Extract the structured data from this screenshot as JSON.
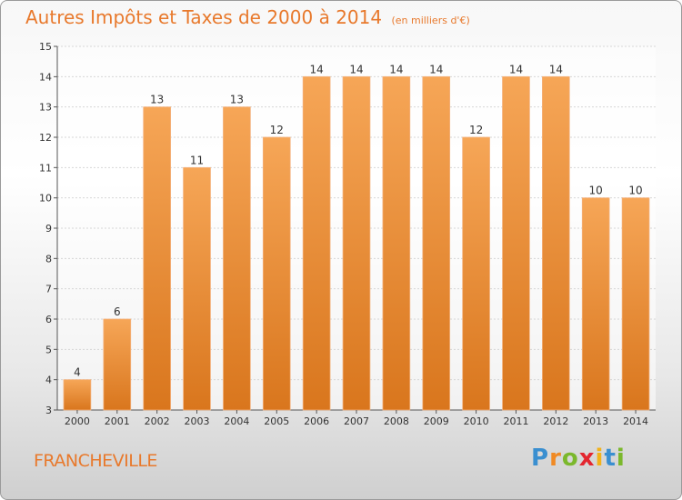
{
  "title": {
    "main": "Autres Impôts et Taxes de 2000 à 2014",
    "unit": "(en milliers d'€)"
  },
  "place": "FRANCHEVILLE",
  "logo": {
    "text": "Proxiti",
    "letters": [
      {
        "ch": "P",
        "color": "#3a8fd0"
      },
      {
        "ch": "r",
        "color": "#f08a24"
      },
      {
        "ch": "o",
        "color": "#7bb82c"
      },
      {
        "ch": "x",
        "color": "#e3262f"
      },
      {
        "ch": "i",
        "color": "#f2b21a"
      },
      {
        "ch": "t",
        "color": "#3a8fd0"
      },
      {
        "ch": "i",
        "color": "#7bb82c"
      }
    ]
  },
  "colors": {
    "accent": "#e8792c",
    "bar_top": "#f6a657",
    "bar_bottom": "#d9761d",
    "grid": "#d6d6d6"
  },
  "chart_data": {
    "type": "bar",
    "title": "Autres Impôts et Taxes de 2000 à 2014",
    "subtitle": "(en milliers d'€)",
    "categories": [
      "2000",
      "2001",
      "2002",
      "2003",
      "2004",
      "2005",
      "2006",
      "2007",
      "2008",
      "2009",
      "2010",
      "2011",
      "2012",
      "2013",
      "2014"
    ],
    "values": [
      4,
      6,
      13,
      11,
      13,
      12,
      14,
      14,
      14,
      14,
      12,
      14,
      14,
      10,
      10
    ],
    "ylim": [
      3,
      15
    ],
    "yticks": [
      3,
      4,
      5,
      6,
      7,
      8,
      9,
      10,
      11,
      12,
      13,
      14,
      15
    ],
    "grid": true,
    "data_labels": true
  }
}
